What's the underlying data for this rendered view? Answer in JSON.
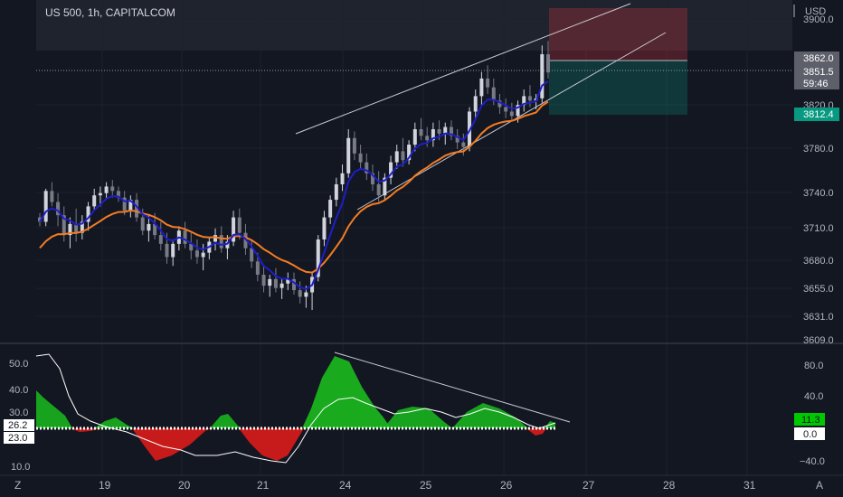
{
  "header": {
    "title": "US 500, 1h, CAPITALCOM",
    "currency": "USD"
  },
  "price_axis": {
    "ticks": [
      "3900.0",
      "3820.0",
      "3780.0",
      "3740.0",
      "3710.0",
      "3680.0",
      "3655.0",
      "3631.0",
      "3609.0"
    ]
  },
  "price_badges": {
    "position_top": "3862.0",
    "last_price": "3851.5",
    "countdown": "59:46",
    "ma_value": "3812.4"
  },
  "osc_axis": {
    "left_ticks": [
      "50.0",
      "40.0",
      "30.0",
      "10.0"
    ],
    "right_ticks": [
      "80.0",
      "40.0",
      "−40.0"
    ],
    "left_badges": [
      "26.2",
      "23.0"
    ],
    "right_badges": [
      "11.3",
      "0.0"
    ]
  },
  "time_axis": {
    "labels": [
      "19",
      "20",
      "21",
      "24",
      "25",
      "26",
      "27",
      "28",
      "31"
    ]
  },
  "corner_icons": {
    "left": "Z",
    "right": "A"
  },
  "colors": {
    "background": "#131722",
    "grid": "#1e222d",
    "up": "#d1d4dc",
    "down": "#787b86",
    "fast_ma": "#1e1ec8",
    "slow_ma": "#f57c22",
    "stop_zone": "#f23645",
    "target_zone": "#089981",
    "hist_pos": "#19b21f",
    "hist_neg": "#d11a1a",
    "signal": "#ffffff",
    "trendline": "#c9ccd4"
  },
  "chart_data": {
    "type": "candlestick",
    "title": "US 500, 1h, CAPITALCOM",
    "ylabel": "USD",
    "ylim": [
      3609,
      3910
    ],
    "x_labels": [
      "19",
      "20",
      "21",
      "24",
      "25",
      "26",
      "27",
      "28",
      "31"
    ],
    "candles": [
      [
        3720,
        3724,
        3712,
        3716
      ],
      [
        3716,
        3746,
        3712,
        3744
      ],
      [
        3744,
        3752,
        3730,
        3734
      ],
      [
        3734,
        3742,
        3712,
        3722
      ],
      [
        3722,
        3730,
        3698,
        3704
      ],
      [
        3704,
        3720,
        3692,
        3714
      ],
      [
        3714,
        3728,
        3698,
        3706
      ],
      [
        3706,
        3722,
        3700,
        3716
      ],
      [
        3716,
        3734,
        3708,
        3730
      ],
      [
        3730,
        3746,
        3726,
        3740
      ],
      [
        3740,
        3748,
        3730,
        3742
      ],
      [
        3742,
        3752,
        3736,
        3748
      ],
      [
        3748,
        3754,
        3738,
        3744
      ],
      [
        3744,
        3748,
        3734,
        3738
      ],
      [
        3738,
        3744,
        3722,
        3726
      ],
      [
        3726,
        3740,
        3720,
        3736
      ],
      [
        3736,
        3742,
        3716,
        3720
      ],
      [
        3720,
        3728,
        3704,
        3708
      ],
      [
        3708,
        3722,
        3698,
        3714
      ],
      [
        3714,
        3724,
        3700,
        3704
      ],
      [
        3704,
        3716,
        3690,
        3696
      ],
      [
        3696,
        3706,
        3678,
        3684
      ],
      [
        3684,
        3700,
        3676,
        3696
      ],
      [
        3696,
        3712,
        3690,
        3708
      ],
      [
        3708,
        3716,
        3692,
        3696
      ],
      [
        3696,
        3706,
        3682,
        3690
      ],
      [
        3690,
        3700,
        3678,
        3684
      ],
      [
        3684,
        3696,
        3672,
        3688
      ],
      [
        3688,
        3702,
        3682,
        3698
      ],
      [
        3698,
        3710,
        3690,
        3704
      ],
      [
        3704,
        3712,
        3688,
        3692
      ],
      [
        3692,
        3704,
        3682,
        3698
      ],
      [
        3698,
        3726,
        3694,
        3720
      ],
      [
        3720,
        3728,
        3700,
        3706
      ],
      [
        3706,
        3714,
        3686,
        3692
      ],
      [
        3692,
        3700,
        3674,
        3680
      ],
      [
        3680,
        3688,
        3662,
        3668
      ],
      [
        3668,
        3676,
        3652,
        3658
      ],
      [
        3658,
        3668,
        3648,
        3664
      ],
      [
        3664,
        3674,
        3652,
        3656
      ],
      [
        3656,
        3664,
        3646,
        3660
      ],
      [
        3660,
        3670,
        3654,
        3664
      ],
      [
        3664,
        3670,
        3650,
        3654
      ],
      [
        3654,
        3662,
        3642,
        3648
      ],
      [
        3648,
        3658,
        3638,
        3652
      ],
      [
        3652,
        3670,
        3636,
        3666
      ],
      [
        3666,
        3704,
        3662,
        3700
      ],
      [
        3700,
        3726,
        3694,
        3720
      ],
      [
        3720,
        3740,
        3714,
        3736
      ],
      [
        3736,
        3756,
        3730,
        3750
      ],
      [
        3750,
        3768,
        3744,
        3760
      ],
      [
        3760,
        3800,
        3756,
        3792
      ],
      [
        3792,
        3798,
        3772,
        3778
      ],
      [
        3778,
        3786,
        3764,
        3770
      ],
      [
        3770,
        3778,
        3754,
        3760
      ],
      [
        3760,
        3768,
        3744,
        3750
      ],
      [
        3750,
        3762,
        3734,
        3740
      ],
      [
        3740,
        3760,
        3736,
        3756
      ],
      [
        3756,
        3776,
        3750,
        3770
      ],
      [
        3770,
        3786,
        3764,
        3780
      ],
      [
        3780,
        3792,
        3766,
        3772
      ],
      [
        3772,
        3790,
        3768,
        3786
      ],
      [
        3786,
        3806,
        3780,
        3800
      ],
      [
        3800,
        3810,
        3790,
        3794
      ],
      [
        3794,
        3802,
        3784,
        3790
      ],
      [
        3790,
        3806,
        3784,
        3800
      ],
      [
        3800,
        3808,
        3790,
        3796
      ],
      [
        3796,
        3806,
        3786,
        3802
      ],
      [
        3802,
        3808,
        3790,
        3794
      ],
      [
        3794,
        3800,
        3782,
        3788
      ],
      [
        3788,
        3796,
        3776,
        3784
      ],
      [
        3784,
        3820,
        3780,
        3816
      ],
      [
        3816,
        3836,
        3808,
        3830
      ],
      [
        3830,
        3852,
        3822,
        3846
      ],
      [
        3846,
        3858,
        3832,
        3838
      ],
      [
        3838,
        3846,
        3822,
        3826
      ],
      [
        3826,
        3832,
        3814,
        3820
      ],
      [
        3820,
        3828,
        3810,
        3816
      ],
      [
        3816,
        3824,
        3808,
        3812
      ],
      [
        3812,
        3826,
        3806,
        3822
      ],
      [
        3822,
        3836,
        3816,
        3830
      ],
      [
        3830,
        3840,
        3820,
        3826
      ],
      [
        3826,
        3832,
        3818,
        3828
      ],
      [
        3828,
        3876,
        3824,
        3868
      ],
      [
        3868,
        3880,
        3846,
        3851.5
      ]
    ],
    "osc_ylim": [
      5,
      56
    ],
    "osc_left_labels": [
      "50.0",
      "40.0",
      "30.0",
      "10.0"
    ],
    "osc_right_labels": [
      "80.0",
      "40.0",
      "−40.0"
    ]
  }
}
